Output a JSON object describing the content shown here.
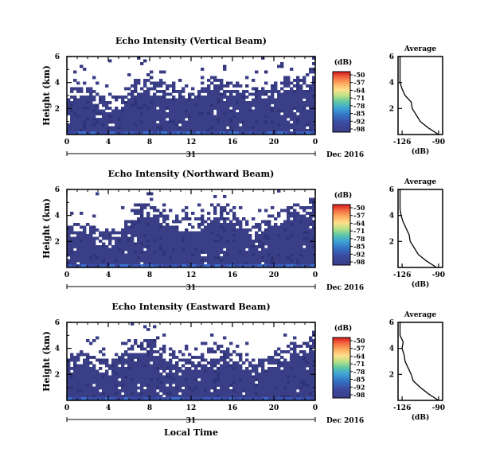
{
  "chart_data": [
    {
      "type": "heatmap",
      "title": "Echo Intensity (Vertical Beam)",
      "ylabel": "Height (km)",
      "x_ticks": [
        "0",
        "4",
        "8",
        "12",
        "16",
        "20",
        "0"
      ],
      "xlim": [
        0,
        24
      ],
      "y_ticks": [
        "2",
        "4",
        "6"
      ],
      "ylim": [
        0,
        6
      ],
      "date_day": "31",
      "date_label": "Dec 2016",
      "cloud_top_km": [
        3.1,
        3.3,
        3.2,
        2.6,
        2.3,
        2.6,
        3.5,
        3.9,
        3.7,
        3.5,
        3.4,
        3.3,
        3.2,
        3.6,
        4.0,
        3.8,
        3.5,
        3.3,
        3.1,
        3.3,
        3.6,
        3.9,
        4.1,
        4.0,
        5.4
      ],
      "colorbar": {
        "unit": "(dB)",
        "labels": [
          "-50",
          "-57",
          "-64",
          "-71",
          "-78",
          "-85",
          "-92",
          "-98"
        ]
      },
      "average": {
        "title": "Average",
        "xlabel": "(dB)",
        "x_ticks": [
          "-126",
          "-90"
        ],
        "y_ticks": [
          "2",
          "4",
          "6"
        ],
        "height_km": [
          0,
          0.5,
          1,
          1.5,
          2,
          2.5,
          3,
          3.5,
          4,
          4.5,
          5,
          5.5,
          6
        ],
        "db": [
          -90,
          -100,
          -108,
          -112,
          -116,
          -117,
          -123,
          -126,
          -128,
          -128,
          -128,
          -128,
          -128
        ]
      }
    },
    {
      "type": "heatmap",
      "title": "Echo Intensity (Northward Beam)",
      "ylabel": "Height (km)",
      "x_ticks": [
        "0",
        "4",
        "8",
        "12",
        "16",
        "20",
        "0"
      ],
      "xlim": [
        0,
        24
      ],
      "y_ticks": [
        "2",
        "4",
        "6"
      ],
      "ylim": [
        0,
        6
      ],
      "date_day": "31",
      "date_label": "Dec 2016",
      "cloud_top_km": [
        2.8,
        3.0,
        3.0,
        2.4,
        2.2,
        2.5,
        4.1,
        4.6,
        4.4,
        4.0,
        3.6,
        3.4,
        3.2,
        3.5,
        4.5,
        4.2,
        3.8,
        3.3,
        2.6,
        3.2,
        3.6,
        4.2,
        4.4,
        4.3,
        5.6
      ],
      "colorbar": {
        "unit": "(dB)",
        "labels": [
          "-50",
          "-57",
          "-64",
          "-71",
          "-78",
          "-85",
          "-92",
          "-98"
        ]
      },
      "average": {
        "title": "Average",
        "xlabel": "(dB)",
        "x_ticks": [
          "-126",
          "-90"
        ],
        "y_ticks": [
          "2",
          "4",
          "6"
        ],
        "height_km": [
          0,
          0.5,
          1,
          1.5,
          2,
          2.5,
          3,
          3.5,
          4,
          4.5,
          5,
          5.5,
          6
        ],
        "db": [
          -92,
          -102,
          -110,
          -114,
          -118,
          -119,
          -122,
          -125,
          -127,
          -128,
          -128,
          -128,
          -128
        ]
      }
    },
    {
      "type": "heatmap",
      "title": "Echo Intensity (Eastward Beam)",
      "ylabel": "Height (km)",
      "x_ticks": [
        "0",
        "4",
        "8",
        "12",
        "16",
        "20",
        "0"
      ],
      "xlim": [
        0,
        24
      ],
      "y_ticks": [
        "2",
        "4",
        "6"
      ],
      "ylim": [
        0,
        6
      ],
      "date_day": "31",
      "date_label": "Dec 2016",
      "xlabel": "Local Time",
      "cloud_top_km": [
        3.0,
        3.2,
        3.3,
        2.8,
        2.6,
        2.9,
        3.6,
        4.3,
        4.2,
        3.9,
        3.4,
        3.2,
        3.0,
        3.1,
        4.0,
        3.7,
        3.3,
        3.0,
        2.7,
        2.9,
        3.2,
        3.8,
        4.1,
        4.0,
        5.7
      ],
      "colorbar": {
        "unit": "(dB)",
        "labels": [
          "-50",
          "-57",
          "-64",
          "-71",
          "-78",
          "-85",
          "-92",
          "-98"
        ]
      },
      "average": {
        "title": "Average",
        "xlabel": "(dB)",
        "x_ticks": [
          "-126",
          "-90"
        ],
        "y_ticks": [
          "2",
          "4",
          "6"
        ],
        "height_km": [
          0,
          0.5,
          1,
          1.5,
          2,
          2.5,
          3,
          3.5,
          4,
          4.5,
          5,
          5.5,
          6
        ],
        "db": [
          -90,
          -100,
          -108,
          -115,
          -117,
          -120,
          -123,
          -124,
          -126,
          -125,
          -128,
          -128,
          -128
        ]
      }
    }
  ],
  "colors": {
    "field": "#3a3e86",
    "field_dark": "#2f3478",
    "background": "#ffffff",
    "colorbar": [
      "#d7191c",
      "#f46d43",
      "#fdae61",
      "#fee08b",
      "#ffffbf",
      "#abdda4",
      "#66c2a5",
      "#3288bd",
      "#2b83ba",
      "#5e4fa2",
      "#3a3e86"
    ]
  }
}
